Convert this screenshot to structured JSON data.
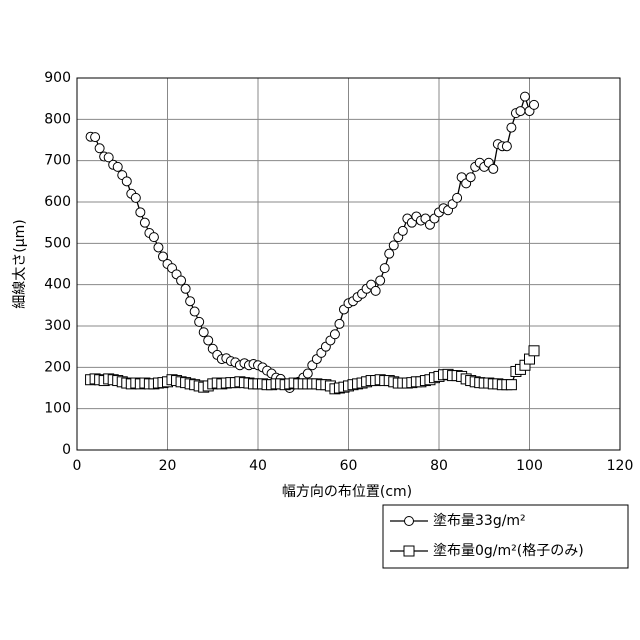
{
  "chart_data": {
    "type": "line",
    "xlabel": "幅方向の布位置(cm)",
    "ylabel": "細線太さ(μm)",
    "xlim": [
      0,
      120
    ],
    "xticks": [
      0,
      20,
      40,
      60,
      80,
      100,
      120
    ],
    "ylim": [
      0,
      900
    ],
    "yticks": [
      0,
      100,
      200,
      300,
      400,
      500,
      600,
      700,
      800,
      900
    ],
    "grid": true,
    "legend": "bottom-right",
    "x": [
      3,
      4,
      5,
      6,
      7,
      8,
      9,
      10,
      11,
      12,
      13,
      14,
      15,
      16,
      17,
      18,
      19,
      20,
      21,
      22,
      23,
      24,
      25,
      26,
      27,
      28,
      29,
      30,
      31,
      32,
      33,
      34,
      35,
      36,
      37,
      38,
      39,
      40,
      41,
      42,
      43,
      44,
      45,
      46,
      47,
      48,
      49,
      50,
      51,
      52,
      53,
      54,
      55,
      56,
      57,
      58,
      59,
      60,
      61,
      62,
      63,
      64,
      65,
      66,
      67,
      68,
      69,
      70,
      71,
      72,
      73,
      74,
      75,
      76,
      77,
      78,
      79,
      80,
      81,
      82,
      83,
      84,
      85,
      86,
      87,
      88,
      89,
      90,
      91,
      92,
      93,
      94,
      95,
      96,
      97,
      98,
      99,
      100,
      101
    ],
    "series": [
      {
        "name": "塗布量33g/m²",
        "color": "#000000",
        "marker": "circle",
        "values": [
          758,
          757,
          730,
          710,
          708,
          690,
          685,
          665,
          650,
          620,
          610,
          575,
          550,
          525,
          515,
          490,
          468,
          450,
          440,
          425,
          410,
          390,
          360,
          335,
          310,
          285,
          265,
          245,
          230,
          220,
          222,
          215,
          212,
          205,
          210,
          205,
          208,
          205,
          200,
          192,
          185,
          175,
          172,
          160,
          150,
          160,
          165,
          175,
          185,
          205,
          220,
          235,
          250,
          265,
          280,
          305,
          340,
          355,
          360,
          370,
          378,
          390,
          400,
          385,
          410,
          440,
          475,
          495,
          515,
          530,
          560,
          550,
          565,
          555,
          560,
          545,
          560,
          575,
          585,
          580,
          595,
          610,
          660,
          645,
          660,
          685,
          695,
          685,
          695,
          680,
          740,
          735,
          735,
          780,
          815,
          820,
          855,
          820,
          835
        ]
      },
      {
        "name": "塗布量0g/m²(格子のみ)",
        "color": "#000000",
        "marker": "square",
        "values": [
          170,
          172,
          170,
          168,
          172,
          170,
          168,
          165,
          162,
          160,
          162,
          160,
          162,
          160,
          160,
          162,
          163,
          165,
          170,
          168,
          165,
          163,
          160,
          158,
          155,
          152,
          155,
          160,
          162,
          160,
          162,
          163,
          163,
          165,
          163,
          162,
          160,
          160,
          160,
          158,
          158,
          160,
          160,
          158,
          160,
          162,
          160,
          160,
          160,
          160,
          160,
          158,
          158,
          155,
          148,
          150,
          152,
          155,
          158,
          160,
          162,
          165,
          168,
          168,
          170,
          168,
          168,
          165,
          162,
          162,
          162,
          163,
          165,
          165,
          168,
          170,
          175,
          178,
          182,
          183,
          180,
          180,
          178,
          172,
          168,
          165,
          163,
          162,
          162,
          160,
          160,
          158,
          158,
          158,
          190,
          195,
          205,
          220,
          240
        ]
      }
    ]
  }
}
